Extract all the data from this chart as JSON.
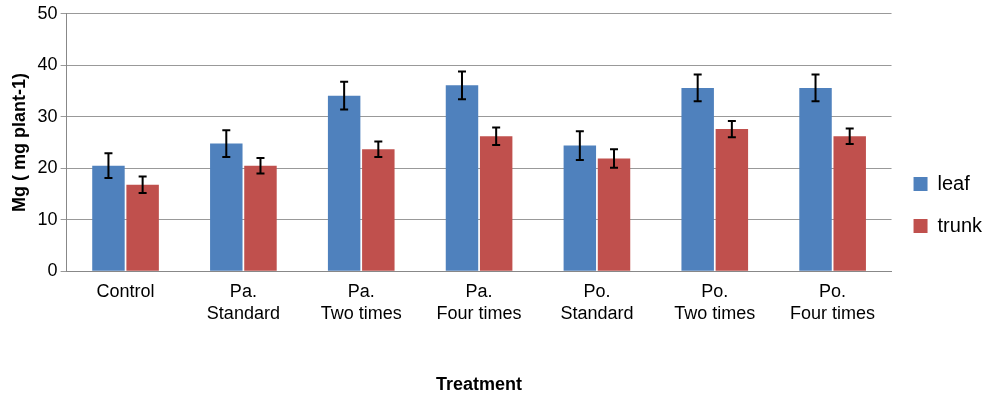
{
  "chart_data": {
    "type": "bar",
    "xlabel": "Treatment",
    "ylabel": "Mg ( mg plant-1)",
    "categories": [
      "Control",
      "Pa.\nStandard",
      "Pa.\nTwo times",
      "Pa.\nFour times",
      "Po.\nStandard",
      "Po.\nTwo times",
      "Po.\nFour times"
    ],
    "series": [
      {
        "name": "leaf",
        "color": "#4f81bd",
        "values": [
          20.5,
          24.8,
          34.1,
          36.1,
          24.4,
          35.6,
          35.6
        ],
        "errors": [
          2.4,
          2.6,
          2.7,
          2.7,
          2.8,
          2.6,
          2.6
        ]
      },
      {
        "name": "trunk",
        "color": "#c0504d",
        "values": [
          16.8,
          20.5,
          23.7,
          26.2,
          21.9,
          27.6,
          26.2
        ],
        "errors": [
          1.6,
          1.5,
          1.5,
          1.7,
          1.8,
          1.6,
          1.5
        ]
      }
    ],
    "ylim": [
      0,
      50
    ],
    "yticks": [
      0,
      10,
      20,
      30,
      40,
      50
    ],
    "grid": "y",
    "legend": "right"
  }
}
